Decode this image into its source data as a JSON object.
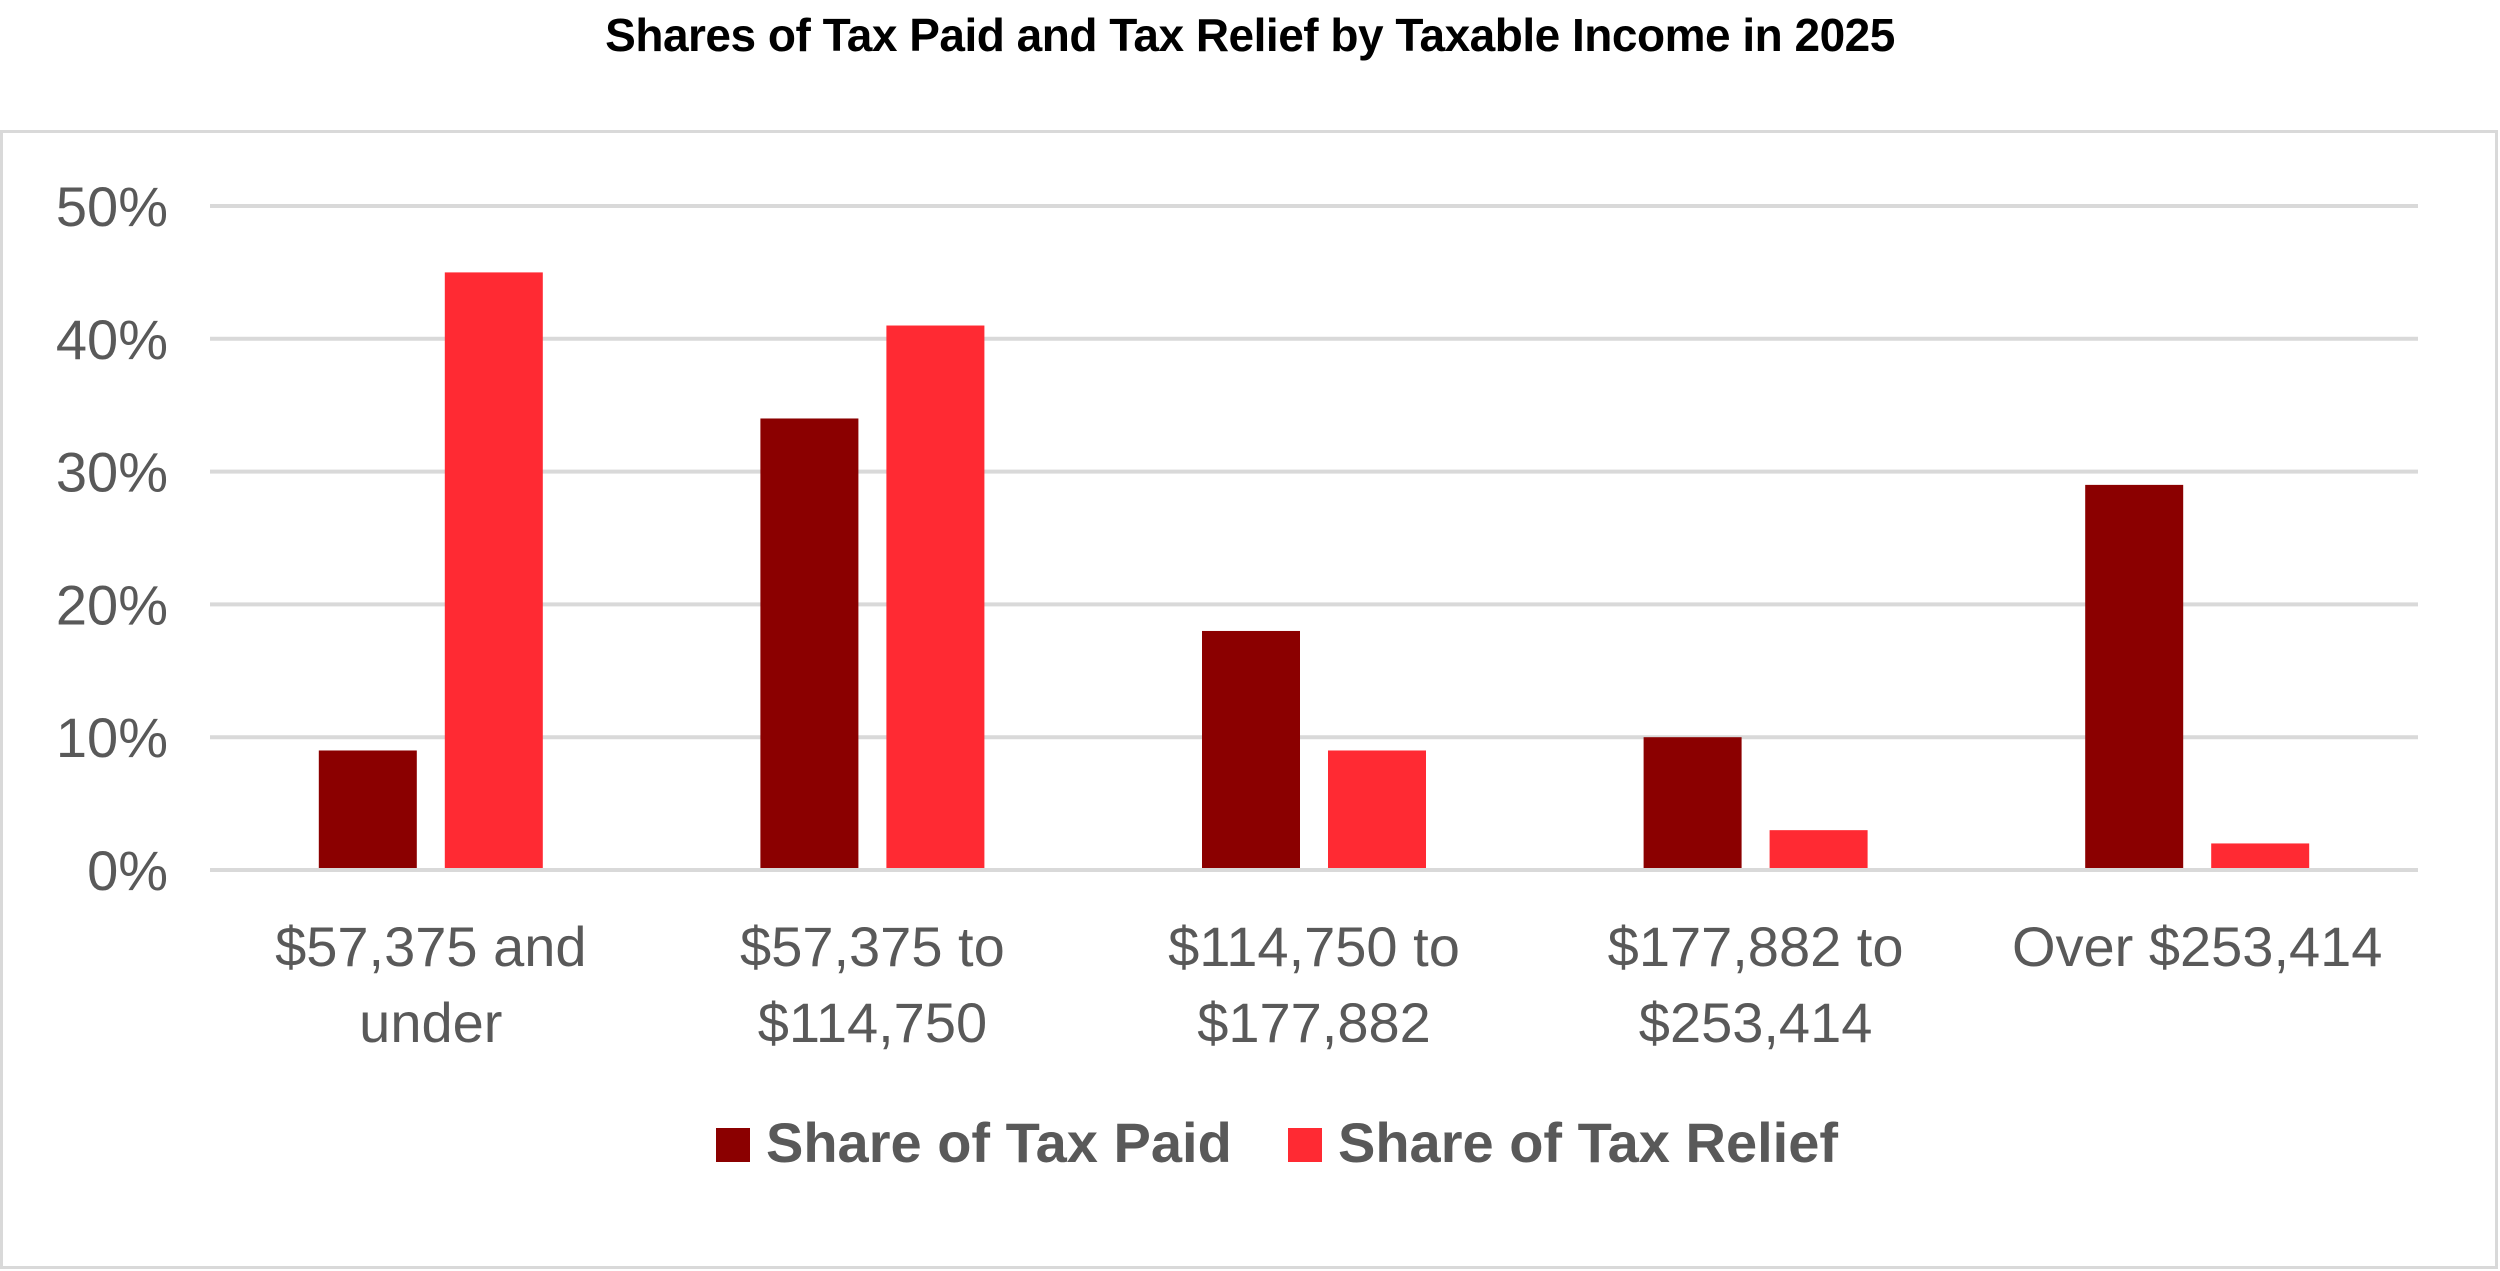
{
  "chart_data": {
    "type": "bar",
    "title": "Shares of Tax Paid and Tax Relief by Taxable Income in 2025",
    "xlabel": "",
    "ylabel": "",
    "categories": [
      [
        "$57,375 and",
        "under"
      ],
      [
        "$57,375 to",
        "$114,750"
      ],
      [
        "$114,750 to",
        "$177,882"
      ],
      [
        "$177,882 to",
        "$253,414"
      ],
      [
        "Over $253,414"
      ]
    ],
    "series": [
      {
        "name": "Share of Tax Paid",
        "color": "#8b0000",
        "values": [
          9,
          34,
          18,
          10,
          29
        ]
      },
      {
        "name": "Share of Tax Relief",
        "color": "#ff2a33",
        "values": [
          45,
          41,
          9,
          3,
          2
        ]
      }
    ],
    "ylim": [
      0,
      50
    ],
    "yticks": [
      0,
      10,
      20,
      30,
      40,
      50
    ],
    "ytick_labels": [
      "0%",
      "10%",
      "20%",
      "30%",
      "40%",
      "50%"
    ],
    "grid": true,
    "legend_position": "bottom"
  }
}
